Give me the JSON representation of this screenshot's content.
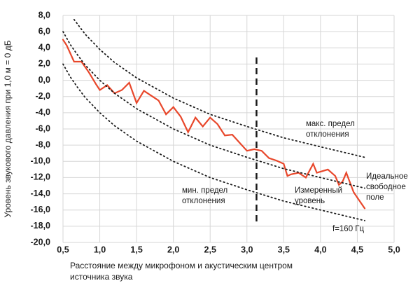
{
  "chart_data": {
    "type": "line",
    "ylabel": "Уровень звукового давления при 1,0 м = 0 дБ",
    "xlabel": [
      "Расстояние между микрофоном и акустическим центром",
      "источника звука"
    ],
    "xlim": [
      0.5,
      5.0
    ],
    "xticks": [
      {
        "value": 0.5,
        "label": "0,5"
      },
      {
        "value": 1.0,
        "label": "1,0"
      },
      {
        "value": 1.5,
        "label": "1,5"
      },
      {
        "value": 2.0,
        "label": "2,0"
      },
      {
        "value": 2.5,
        "label": "2,5"
      },
      {
        "value": 3.0,
        "label": "3,0"
      },
      {
        "value": 3.5,
        "label": "3,5"
      },
      {
        "value": 4.0,
        "label": "4,0"
      },
      {
        "value": 4.5,
        "label": "4,5"
      },
      {
        "value": 5.0,
        "label": "5,0"
      }
    ],
    "ylim": [
      -20,
      8
    ],
    "yticks": [
      {
        "value": 8,
        "label": "8,0"
      },
      {
        "value": 6,
        "label": "6,0"
      },
      {
        "value": 4,
        "label": "4,0"
      },
      {
        "value": 2,
        "label": "2,0"
      },
      {
        "value": 0,
        "label": "0,0"
      },
      {
        "value": -2,
        "label": "-2,0"
      },
      {
        "value": -4,
        "label": "-4,0"
      },
      {
        "value": -6,
        "label": "-6,0"
      },
      {
        "value": -8,
        "label": "-8,0"
      },
      {
        "value": -10,
        "label": "-10,0"
      },
      {
        "value": -12,
        "label": "-12,0"
      },
      {
        "value": -14,
        "label": "-14,0"
      },
      {
        "value": -16,
        "label": "-16,0"
      },
      {
        "value": -18,
        "label": "-18,0"
      },
      {
        "value": -20,
        "label": "-20,0"
      }
    ],
    "grid": true,
    "marker_x": 3.13,
    "series": [
      {
        "color": "#e8472b",
        "style": "solid",
        "x": [
          0.5,
          0.55,
          0.65,
          0.75,
          0.85,
          0.95,
          1.0,
          1.1,
          1.2,
          1.3,
          1.4,
          1.5,
          1.6,
          1.7,
          1.8,
          1.9,
          2.0,
          2.1,
          2.2,
          2.3,
          2.4,
          2.5,
          2.6,
          2.7,
          2.8,
          2.9,
          3.0,
          3.1,
          3.2,
          3.3,
          3.4,
          3.5,
          3.55,
          3.6,
          3.7,
          3.8,
          3.9,
          3.95,
          4.1,
          4.2,
          4.25,
          4.3,
          4.35,
          4.45,
          4.6
        ],
        "values": [
          5.0,
          4.3,
          2.3,
          2.3,
          1.0,
          -0.5,
          -1.2,
          -0.6,
          -1.6,
          -1.2,
          -0.3,
          -2.8,
          -1.3,
          -1.9,
          -2.5,
          -4.2,
          -3.3,
          -4.5,
          -6.4,
          -4.6,
          -5.7,
          -4.6,
          -5.4,
          -6.8,
          -6.7,
          -7.7,
          -8.7,
          -8.5,
          -8.7,
          -9.6,
          -9.9,
          -10.3,
          -11.8,
          -11.6,
          -11.4,
          -12.0,
          -10.3,
          -11.4,
          -11.0,
          -11.8,
          -12.9,
          -12.5,
          -11.4,
          -13.8,
          -15.8
        ]
      },
      {
        "color": "#1a1a1a",
        "style": "dotted",
        "x": [
          0.5,
          0.6,
          0.7,
          0.8,
          1.0,
          1.2,
          1.5,
          2.0,
          2.5,
          3.0,
          3.5,
          4.0,
          4.6
        ],
        "values": [
          6.0,
          4.4,
          3.1,
          1.9,
          0,
          -1.6,
          -3.5,
          -6.0,
          -8.0,
          -9.5,
          -10.9,
          -12.0,
          -13.3
        ]
      },
      {
        "color": "#1a1a1a",
        "style": "dotted",
        "x": [
          0.65,
          0.7,
          0.8,
          1.0,
          1.2,
          1.5,
          2.0,
          2.5,
          3.0,
          3.5,
          4.0,
          4.6
        ],
        "values": [
          7.5,
          6.9,
          5.7,
          3.8,
          2.2,
          0.3,
          -2.2,
          -4.2,
          -5.7,
          -7.1,
          -8.2,
          -9.5
        ]
      },
      {
        "color": "#1a1a1a",
        "style": "dotted",
        "x": [
          0.5,
          0.6,
          0.7,
          0.8,
          1.0,
          1.2,
          1.5,
          2.0,
          2.5,
          3.0,
          3.5,
          4.0,
          4.6
        ],
        "values": [
          2.0,
          0.4,
          -0.9,
          -2.1,
          -4.0,
          -5.6,
          -7.5,
          -10.0,
          -12.0,
          -13.5,
          -14.9,
          -16.0,
          -17.3
        ]
      }
    ],
    "annotations": [
      {
        "lines": [
          "макс. предел",
          "отклонения"
        ],
        "color": "#e8472b"
      },
      {
        "lines": [
          "мин. предел",
          "отклонения"
        ],
        "color": "#e8472b"
      },
      {
        "lines": [
          "Измеренный",
          "уровень"
        ],
        "color": "#e8472b"
      },
      {
        "lines": [
          "Идеальное",
          "свободное",
          "поле"
        ],
        "color": "#1a1a1a"
      },
      {
        "lines": [
          "f=160 Гц"
        ],
        "color": "#1a1a1a"
      }
    ]
  }
}
